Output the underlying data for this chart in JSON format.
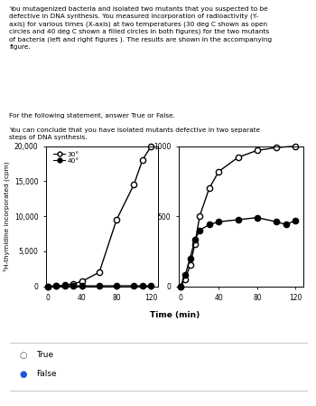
{
  "text_intro": "You mutagenized bacteria and isolated two mutants that you suspected to be defective in DNA synthesis. You measured incorporation of radioactivity (Y-axis) for various times (X-axis) at two temperatures (30 deg C shown as open circles and 40 deg C shown a filled circles in both figures) for the two mutants of bacteria (left and right figures ). The results are shown in the accompanying figure.",
  "text_statement_intro": "For the following statement, answer True or False.",
  "text_statement": "You can conclude that you have isolated mutants defective in two separate steps of DNA synthesis.",
  "ylabel": "³H-thymidine incorporated (cpm)",
  "xlabel": "Time (min)",
  "left_graph": {
    "ylim": [
      0,
      20000
    ],
    "yticks": [
      0,
      5000,
      10000,
      15000,
      20000
    ],
    "xlim": [
      -2,
      128
    ],
    "xticks": [
      0,
      40,
      80,
      120
    ],
    "open_circles_x": [
      0,
      10,
      20,
      30,
      40,
      60,
      80,
      100,
      110,
      120
    ],
    "open_circles_y": [
      0,
      50,
      150,
      350,
      700,
      2000,
      9500,
      14500,
      18000,
      20000
    ],
    "filled_circles_x": [
      0,
      10,
      20,
      30,
      40,
      60,
      80,
      100,
      110,
      120
    ],
    "filled_circles_y": [
      0,
      20,
      30,
      40,
      50,
      55,
      60,
      65,
      68,
      70
    ]
  },
  "right_graph": {
    "ylim": [
      0,
      1000
    ],
    "yticks": [
      0,
      500,
      1000
    ],
    "xlim": [
      -2,
      128
    ],
    "xticks": [
      0,
      40,
      80,
      120
    ],
    "open_circles_x": [
      0,
      5,
      10,
      15,
      20,
      30,
      40,
      60,
      80,
      100,
      120
    ],
    "open_circles_y": [
      0,
      50,
      150,
      300,
      500,
      700,
      820,
      920,
      970,
      990,
      1000
    ],
    "filled_circles_x": [
      0,
      5,
      10,
      15,
      20,
      30,
      40,
      60,
      80,
      100,
      110,
      120
    ],
    "filled_circles_y": [
      0,
      80,
      200,
      330,
      400,
      440,
      460,
      475,
      490,
      460,
      440,
      470
    ]
  },
  "legend_30": "30°",
  "legend_40": "40°",
  "answer_true": "True",
  "answer_false": "False",
  "background_color": "#ffffff",
  "marker_size": 4.5,
  "line_width": 1.0
}
